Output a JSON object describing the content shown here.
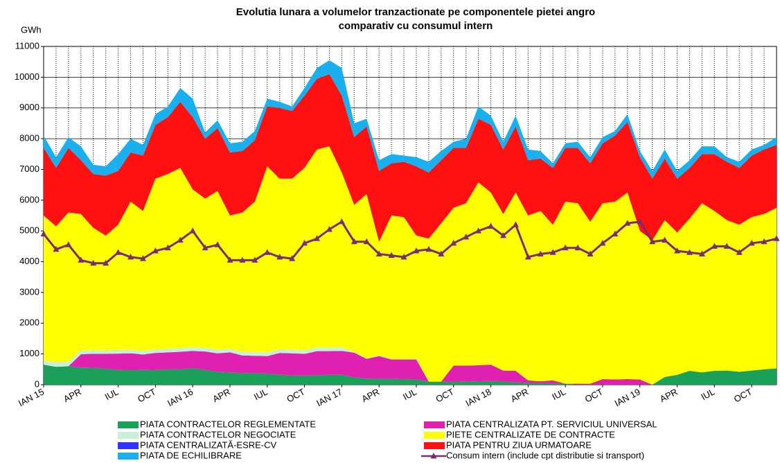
{
  "chart_data": {
    "type": "stacked_area_line",
    "title": "Evolutia lunara a volumelor tranzactionate pe componentele pietei angro",
    "subtitle": "comparativ cu consumul intern",
    "y_label": "GWh",
    "categories": [
      "IAN 15",
      null,
      null,
      "APR",
      null,
      null,
      "IUL",
      null,
      null,
      "OCT",
      null,
      null,
      "IAN 16",
      null,
      null,
      "APR",
      null,
      null,
      "IUL",
      null,
      null,
      "OCT",
      null,
      null,
      "IAN 17",
      null,
      null,
      "APR",
      null,
      null,
      "IUL",
      null,
      null,
      "OCT",
      null,
      null,
      "IAN 18",
      null,
      null,
      "APR",
      null,
      null,
      "IUL",
      null,
      null,
      "OCT",
      null,
      null,
      "IAN 19",
      null,
      null,
      "APR",
      null,
      null,
      "IUL",
      null,
      null,
      "OCT",
      null,
      null
    ],
    "ylim": [
      0,
      11000
    ],
    "yticks": [
      0,
      1000,
      2000,
      3000,
      4000,
      5000,
      6000,
      7000,
      8000,
      9000,
      10000,
      11000
    ],
    "grid": true,
    "series": [
      {
        "name": "PIATA CONTRACTELOR REGLEMENTATE",
        "color": "#1ba05a",
        "values": [
          650,
          580,
          600,
          560,
          550,
          520,
          480,
          470,
          480,
          470,
          500,
          500,
          540,
          480,
          420,
          400,
          380,
          380,
          360,
          330,
          300,
          300,
          310,
          320,
          320,
          240,
          200,
          190,
          190,
          180,
          170,
          100,
          100,
          100,
          110,
          110,
          120,
          110,
          80,
          60,
          50,
          40,
          30,
          0,
          0,
          0,
          0,
          0,
          0,
          0,
          250,
          320,
          450,
          400,
          450,
          460,
          420,
          460,
          500,
          530
        ]
      },
      {
        "name": "PIATA CENTRALIZATA PT. SERVICIUL UNIVERSAL",
        "color": "#e020b0",
        "values": [
          0,
          0,
          0,
          430,
          450,
          480,
          530,
          550,
          500,
          560,
          550,
          570,
          560,
          600,
          600,
          650,
          570,
          560,
          570,
          700,
          720,
          700,
          780,
          770,
          780,
          800,
          640,
          740,
          630,
          640,
          650,
          0,
          0,
          520,
          510,
          520,
          530,
          350,
          370,
          80,
          60,
          100,
          0,
          30,
          30,
          180,
          170,
          180,
          170,
          0,
          0,
          0,
          0,
          0,
          0,
          0,
          0,
          0,
          0,
          0
        ]
      },
      {
        "name": "PIATA CONTRACTELOR NEGOCIATE",
        "color": "#c8f0d8",
        "values": [
          130,
          150,
          150,
          120,
          120,
          120,
          120,
          120,
          120,
          120,
          120,
          120,
          120,
          120,
          120,
          120,
          120,
          120,
          120,
          120,
          120,
          120,
          120,
          120,
          120,
          20,
          20,
          20,
          20,
          20,
          20,
          0,
          0,
          0,
          0,
          0,
          0,
          0,
          0,
          0,
          0,
          0,
          0,
          0,
          0,
          0,
          0,
          0,
          0,
          0,
          0,
          0,
          0,
          0,
          0,
          0,
          0,
          0,
          0,
          0
        ]
      },
      {
        "name": "PIATA CENTRALIZATĂ-ESRE-CV",
        "color": "#3333ff",
        "values": [
          0,
          0,
          0,
          0,
          0,
          0,
          0,
          0,
          0,
          0,
          0,
          0,
          0,
          0,
          0,
          0,
          0,
          0,
          0,
          0,
          0,
          0,
          0,
          0,
          0,
          0,
          0,
          0,
          0,
          0,
          0,
          0,
          0,
          0,
          0,
          0,
          0,
          0,
          0,
          0,
          0,
          0,
          0,
          0,
          0,
          0,
          0,
          0,
          0,
          0,
          0,
          0,
          0,
          0,
          0,
          0,
          0,
          0,
          0,
          0
        ]
      },
      {
        "name": "PIETE CENTRALIZATE DE CONTRACTE",
        "color": "#ffff00",
        "values": [
          4720,
          4420,
          4850,
          4440,
          3980,
          3730,
          4070,
          4810,
          4550,
          5550,
          5680,
          5860,
          5130,
          4850,
          5160,
          4330,
          4530,
          4890,
          6050,
          5550,
          5560,
          5930,
          6440,
          6540,
          5680,
          4790,
          5340,
          3700,
          4660,
          4610,
          4010,
          4650,
          5150,
          5130,
          5280,
          5950,
          5600,
          5090,
          5800,
          5360,
          5540,
          5060,
          5920,
          5870,
          5270,
          5720,
          5780,
          6070,
          4830,
          4700,
          5100,
          4630,
          4950,
          5500,
          5200,
          4890,
          4780,
          4990,
          5050,
          5220
        ]
      },
      {
        "name": "PIATA PENTRU ZIUA URMATOARE",
        "color": "#ff1010",
        "values": [
          2200,
          1900,
          2100,
          1750,
          1750,
          1950,
          1750,
          1600,
          1800,
          1750,
          1850,
          2150,
          2350,
          1950,
          2050,
          2050,
          2000,
          2000,
          1950,
          2300,
          2200,
          2350,
          2300,
          2350,
          2500,
          2200,
          2200,
          2300,
          1700,
          1800,
          2250,
          2150,
          2050,
          1950,
          1800,
          2070,
          2200,
          2100,
          2150,
          1800,
          1700,
          1850,
          1750,
          1800,
          1900,
          1950,
          2150,
          2300,
          2400,
          2000,
          2000,
          1750,
          1650,
          1600,
          1850,
          1900,
          1850,
          2000,
          2100,
          2050
        ]
      },
      {
        "name": "PIATA DE ECHILIBRARE",
        "color": "#1ab0f0",
        "values": [
          400,
          350,
          350,
          450,
          300,
          300,
          550,
          450,
          350,
          350,
          350,
          450,
          600,
          200,
          250,
          300,
          300,
          300,
          250,
          200,
          150,
          250,
          350,
          450,
          900,
          450,
          250,
          350,
          300,
          200,
          300,
          350,
          300,
          200,
          300,
          400,
          300,
          250,
          350,
          350,
          250,
          150,
          150,
          200,
          200,
          200,
          150,
          250,
          200,
          250,
          300,
          250,
          250,
          250,
          250,
          150,
          200,
          200,
          150,
          250
        ]
      },
      {
        "name": "Consum intern (include cpt distributie si transport)",
        "color": "#7a2c6e",
        "type": "line",
        "values": [
          4900,
          4400,
          4550,
          4050,
          3950,
          3950,
          4300,
          4150,
          4100,
          4350,
          4450,
          4700,
          5000,
          4450,
          4550,
          4050,
          4050,
          4050,
          4300,
          4150,
          4100,
          4600,
          4750,
          5050,
          5300,
          4650,
          4650,
          4250,
          4200,
          4150,
          4350,
          4400,
          4250,
          4600,
          4800,
          5000,
          5150,
          4850,
          5200,
          4150,
          4250,
          4300,
          4450,
          4450,
          4250,
          4600,
          4900,
          5250,
          5300,
          4650,
          4700,
          4350,
          4300,
          4250,
          4500,
          4500,
          4300,
          4600,
          4650,
          4750
        ]
      }
    ]
  }
}
